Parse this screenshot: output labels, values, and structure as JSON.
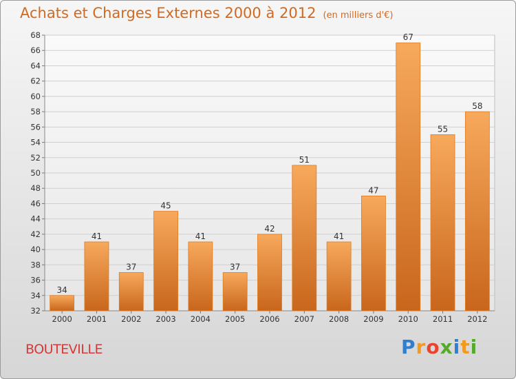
{
  "chart_data": {
    "type": "bar",
    "title": "Achats et Charges Externes 2000 à 2012",
    "subtitle": "(en milliers d'€)",
    "categories": [
      "2000",
      "2001",
      "2002",
      "2003",
      "2004",
      "2005",
      "2006",
      "2007",
      "2008",
      "2009",
      "2010",
      "2011",
      "2012"
    ],
    "values": [
      34,
      41,
      37,
      45,
      41,
      37,
      42,
      51,
      41,
      47,
      67,
      55,
      58
    ],
    "ylim": [
      32,
      68
    ],
    "yticks": [
      32,
      34,
      36,
      38,
      40,
      42,
      44,
      46,
      48,
      50,
      52,
      54,
      56,
      58,
      60,
      62,
      64,
      66,
      68
    ],
    "grid": true,
    "bar_color": "#f0862a",
    "bar_color_light": "#f7a95c"
  },
  "footer": {
    "place": "BOUTEVILLE",
    "brand_letters": [
      {
        "ch": "P",
        "color": "#2f7fd1"
      },
      {
        "ch": "r",
        "color": "#f39a1e"
      },
      {
        "ch": "o",
        "color": "#e8452c"
      },
      {
        "ch": "x",
        "color": "#55aa2b"
      },
      {
        "ch": "i",
        "color": "#2f7fd1"
      },
      {
        "ch": "t",
        "color": "#f39a1e"
      },
      {
        "ch": "i",
        "color": "#55aa2b"
      }
    ]
  }
}
